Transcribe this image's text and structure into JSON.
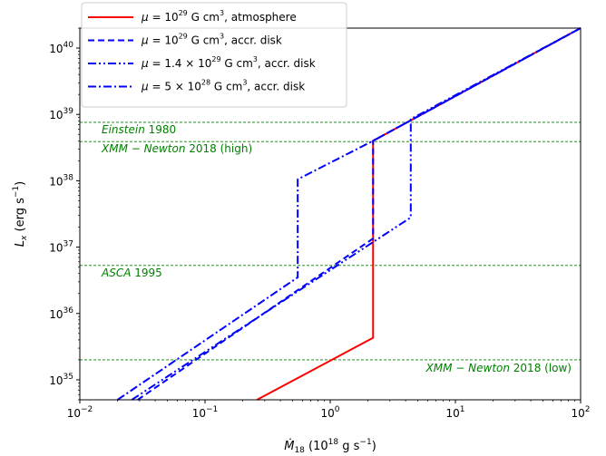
{
  "chart_data": {
    "type": "line",
    "x_scale": "log",
    "y_scale": "log",
    "xlim": [
      0.01,
      100
    ],
    "ylim": [
      5e+34,
      2e+40
    ],
    "xlabel": {
      "main": "Ṁ",
      "sub": "18",
      "rest": " (10",
      "exp": "18",
      "unit": " g s",
      "unitexp": "−1",
      "close": ")"
    },
    "ylabel": {
      "main": "L",
      "sub": "x",
      "rest": " (erg s",
      "exp": "−1",
      "close": ")"
    },
    "x_ticks": [
      {
        "value": 0.01,
        "base": "10",
        "exp": "−2"
      },
      {
        "value": 0.1,
        "base": "10",
        "exp": "−1"
      },
      {
        "value": 1,
        "base": "10",
        "exp": "0"
      },
      {
        "value": 10,
        "base": "10",
        "exp": "1"
      },
      {
        "value": 100,
        "base": "10",
        "exp": "2"
      }
    ],
    "y_ticks": [
      {
        "value": 1e+35,
        "base": "10",
        "exp": "35"
      },
      {
        "value": 1e+36,
        "base": "10",
        "exp": "36"
      },
      {
        "value": 1e+37,
        "base": "10",
        "exp": "37"
      },
      {
        "value": 1e+38,
        "base": "10",
        "exp": "38"
      },
      {
        "value": 1e+39,
        "base": "10",
        "exp": "39"
      },
      {
        "value": 1e+40,
        "base": "10",
        "exp": "40"
      }
    ],
    "series": [
      {
        "name": "μ = 10^29 G cm^3, atmosphere",
        "legend": {
          "pre": "μ = 10",
          "exp": "29",
          "mid": " G cm",
          "exp2": "3",
          "post": ", atmosphere"
        },
        "color": "#ff0000",
        "dash": "solid",
        "points": [
          [
            0.26,
            5e+34
          ],
          [
            2.2,
            4.3e+35
          ],
          [
            2.2,
            4e+38
          ],
          [
            100,
            2e+40
          ]
        ]
      },
      {
        "name": "μ = 10^29 G cm^3, accr. disk",
        "legend": {
          "pre": "μ = 10",
          "exp": "29",
          "mid": " G cm",
          "exp2": "3",
          "post": ", accr. disk"
        },
        "color": "#0000ff",
        "dash": "dashed",
        "points": [
          [
            0.029,
            5e+34
          ],
          [
            2.2,
            1.35e+37
          ],
          [
            2.2,
            4e+38
          ],
          [
            100,
            2e+40
          ]
        ]
      },
      {
        "name": "μ = 1.4 × 10^29 G cm^3, accr. disk",
        "legend": {
          "pre": "μ = 1.4 × 10",
          "exp": "29",
          "mid": " G cm",
          "exp2": "3",
          "post": ", accr. disk"
        },
        "color": "#0000ff",
        "dash": "dashdotdot",
        "points": [
          [
            0.026,
            5e+34
          ],
          [
            4.4,
            2.8e+37
          ],
          [
            4.4,
            8.5e+38
          ],
          [
            100,
            2e+40
          ]
        ]
      },
      {
        "name": "μ = 5 × 10^28 G cm^3, accr. disk",
        "legend": {
          "pre": "μ = 5 × 10",
          "exp": "28",
          "mid": " G cm",
          "exp2": "3",
          "post": ", accr. disk"
        },
        "color": "#0000ff",
        "dash": "dashdot",
        "points": [
          [
            0.02,
            5e+34
          ],
          [
            0.55,
            3.5e+36
          ],
          [
            0.55,
            1.05e+38
          ],
          [
            2.2,
            4e+38
          ],
          [
            100,
            2e+40
          ]
        ]
      }
    ],
    "observations": [
      {
        "italic": "Einstein",
        "rest": " 1980",
        "value": 7.6e+38,
        "label_side": "left"
      },
      {
        "italic": "XMM − Newton",
        "rest": " 2018 (high)",
        "value": 3.9e+38,
        "label_side": "left"
      },
      {
        "italic": "ASCA",
        "rest": " 1995",
        "value": 5.3e+36,
        "label_side": "left"
      },
      {
        "italic": "XMM − Newton",
        "rest": " 2018 (low)",
        "value": 2e+35,
        "label_side": "right"
      }
    ],
    "observation_color": "#008000",
    "legend_position": "top-left",
    "grid": false
  }
}
